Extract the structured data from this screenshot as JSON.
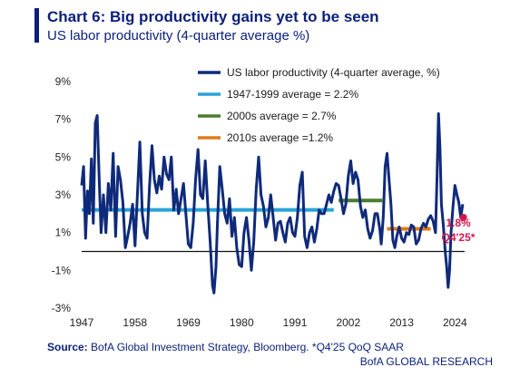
{
  "header": {
    "title": "Chart 6: Big productivity gains yet to be seen",
    "subtitle": "US labor productivity (4-quarter average %)"
  },
  "footer": {
    "source_label": "Source:",
    "source_text": " BofA Global Investment Strategy, Bloomberg. *Q4'25 QoQ SAAR",
    "brand": "BofA GLOBAL RESEARCH"
  },
  "colors": {
    "series": "#0f2a7a",
    "avg_1947_1999": "#29a3d8",
    "avg_2000s": "#4a7d2c",
    "avg_2010s": "#e07b1a",
    "annotation": "#d1184e",
    "zero_line": "#111111"
  },
  "chart_data": {
    "type": "line",
    "x_ticks": [
      "1947",
      "1958",
      "1969",
      "1980",
      "1991",
      "2002",
      "2013",
      "2024"
    ],
    "y_ticks": [
      "9%",
      "7%",
      "5%",
      "3%",
      "1%",
      "-1%",
      "-3%"
    ],
    "xlim": [
      1947,
      2026
    ],
    "ylim": [
      -3,
      9
    ],
    "zero_line": true,
    "grid": false,
    "legend_position": "top-right",
    "series": [
      {
        "name": "US labor productivity (4-quarter average, %)",
        "points": [
          [
            1947.0,
            3.5
          ],
          [
            1947.4,
            4.5
          ],
          [
            1947.8,
            0.7
          ],
          [
            1948.2,
            3.2
          ],
          [
            1948.6,
            2.0
          ],
          [
            1949.0,
            4.9
          ],
          [
            1949.4,
            1.5
          ],
          [
            1949.8,
            6.8
          ],
          [
            1950.2,
            7.2
          ],
          [
            1950.6,
            4.0
          ],
          [
            1951.0,
            1.0
          ],
          [
            1951.5,
            3.0
          ],
          [
            1952.0,
            1.0
          ],
          [
            1952.5,
            3.6
          ],
          [
            1953.0,
            2.2
          ],
          [
            1953.5,
            5.2
          ],
          [
            1954.0,
            0.8
          ],
          [
            1954.5,
            4.5
          ],
          [
            1955.0,
            3.8
          ],
          [
            1955.5,
            2.6
          ],
          [
            1956.0,
            0.2
          ],
          [
            1956.5,
            0.8
          ],
          [
            1957.0,
            1.5
          ],
          [
            1957.5,
            2.5
          ],
          [
            1958.0,
            0.3
          ],
          [
            1958.5,
            3.0
          ],
          [
            1959.0,
            5.8
          ],
          [
            1959.5,
            2.0
          ],
          [
            1960.0,
            1.0
          ],
          [
            1960.5,
            0.7
          ],
          [
            1961.0,
            3.5
          ],
          [
            1961.5,
            5.6
          ],
          [
            1962.0,
            3.8
          ],
          [
            1962.5,
            3.1
          ],
          [
            1963.0,
            4.0
          ],
          [
            1963.5,
            3.3
          ],
          [
            1964.0,
            5.0
          ],
          [
            1964.5,
            4.1
          ],
          [
            1965.0,
            3.8
          ],
          [
            1965.5,
            5.0
          ],
          [
            1966.0,
            2.2
          ],
          [
            1966.5,
            3.3
          ],
          [
            1967.0,
            2.0
          ],
          [
            1967.5,
            2.8
          ],
          [
            1968.0,
            3.6
          ],
          [
            1968.5,
            2.0
          ],
          [
            1969.0,
            0.4
          ],
          [
            1969.5,
            0.2
          ],
          [
            1970.0,
            1.5
          ],
          [
            1970.5,
            3.8
          ],
          [
            1971.0,
            5.4
          ],
          [
            1971.5,
            3.0
          ],
          [
            1972.0,
            2.8
          ],
          [
            1972.5,
            4.8
          ],
          [
            1973.0,
            2.5
          ],
          [
            1973.5,
            0.5
          ],
          [
            1974.0,
            -1.8
          ],
          [
            1974.3,
            -2.2
          ],
          [
            1974.7,
            -0.8
          ],
          [
            1975.0,
            1.5
          ],
          [
            1975.5,
            4.5
          ],
          [
            1976.0,
            3.3
          ],
          [
            1976.5,
            2.0
          ],
          [
            1977.0,
            1.5
          ],
          [
            1977.5,
            2.8
          ],
          [
            1978.0,
            0.8
          ],
          [
            1978.5,
            1.8
          ],
          [
            1979.0,
            0.2
          ],
          [
            1979.5,
            -0.7
          ],
          [
            1980.0,
            -0.8
          ],
          [
            1980.5,
            1.0
          ],
          [
            1981.0,
            1.8
          ],
          [
            1981.5,
            0.6
          ],
          [
            1982.0,
            -1.0
          ],
          [
            1982.5,
            0.5
          ],
          [
            1983.0,
            3.3
          ],
          [
            1983.5,
            5.0
          ],
          [
            1984.0,
            3.0
          ],
          [
            1984.5,
            2.4
          ],
          [
            1985.0,
            1.3
          ],
          [
            1985.5,
            1.8
          ],
          [
            1986.0,
            3.0
          ],
          [
            1986.5,
            1.8
          ],
          [
            1987.0,
            0.6
          ],
          [
            1987.5,
            1.5
          ],
          [
            1988.0,
            1.6
          ],
          [
            1988.5,
            1.0
          ],
          [
            1989.0,
            0.5
          ],
          [
            1989.5,
            1.5
          ],
          [
            1990.0,
            1.8
          ],
          [
            1990.5,
            1.0
          ],
          [
            1991.0,
            0.8
          ],
          [
            1991.5,
            1.8
          ],
          [
            1992.0,
            3.5
          ],
          [
            1992.5,
            4.2
          ],
          [
            1993.0,
            0.8
          ],
          [
            1993.5,
            0.2
          ],
          [
            1994.0,
            1.0
          ],
          [
            1994.5,
            1.3
          ],
          [
            1995.0,
            0.5
          ],
          [
            1995.5,
            1.2
          ],
          [
            1996.0,
            2.2
          ],
          [
            1996.5,
            2.0
          ],
          [
            1997.0,
            2.0
          ],
          [
            1997.5,
            2.5
          ],
          [
            1998.0,
            3.0
          ],
          [
            1998.5,
            2.6
          ],
          [
            1999.0,
            3.2
          ],
          [
            1999.5,
            3.6
          ],
          [
            2000.0,
            3.5
          ],
          [
            2000.5,
            2.8
          ],
          [
            2001.0,
            2.0
          ],
          [
            2001.5,
            2.5
          ],
          [
            2002.0,
            4.0
          ],
          [
            2002.5,
            4.8
          ],
          [
            2003.0,
            3.6
          ],
          [
            2003.5,
            4.2
          ],
          [
            2004.0,
            3.8
          ],
          [
            2004.5,
            2.4
          ],
          [
            2005.0,
            1.8
          ],
          [
            2005.5,
            2.2
          ],
          [
            2006.0,
            1.2
          ],
          [
            2006.5,
            0.7
          ],
          [
            2007.0,
            1.1
          ],
          [
            2007.5,
            2.0
          ],
          [
            2008.0,
            2.0
          ],
          [
            2008.5,
            1.2
          ],
          [
            2008.8,
            0.4
          ],
          [
            2009.2,
            1.8
          ],
          [
            2009.6,
            4.5
          ],
          [
            2010.0,
            5.2
          ],
          [
            2010.4,
            3.8
          ],
          [
            2010.8,
            2.5
          ],
          [
            2011.2,
            0.6
          ],
          [
            2011.6,
            0.2
          ],
          [
            2012.0,
            0.8
          ],
          [
            2012.5,
            1.3
          ],
          [
            2013.0,
            0.7
          ],
          [
            2013.5,
            0.5
          ],
          [
            2014.0,
            1.0
          ],
          [
            2014.5,
            0.9
          ],
          [
            2015.0,
            1.4
          ],
          [
            2015.5,
            1.3
          ],
          [
            2016.0,
            0.4
          ],
          [
            2016.5,
            0.6
          ],
          [
            2017.0,
            1.2
          ],
          [
            2017.5,
            1.5
          ],
          [
            2018.0,
            1.3
          ],
          [
            2018.5,
            1.7
          ],
          [
            2019.0,
            1.9
          ],
          [
            2019.5,
            1.6
          ],
          [
            2020.0,
            1.0
          ],
          [
            2020.3,
            4.0
          ],
          [
            2020.6,
            7.3
          ],
          [
            2020.9,
            5.5
          ],
          [
            2021.2,
            2.5
          ],
          [
            2021.6,
            1.4
          ],
          [
            2022.0,
            0.0
          ],
          [
            2022.3,
            -0.8
          ],
          [
            2022.6,
            -1.9
          ],
          [
            2022.9,
            -1.0
          ],
          [
            2023.2,
            1.0
          ],
          [
            2023.6,
            2.4
          ],
          [
            2024.0,
            3.5
          ],
          [
            2024.4,
            3.0
          ],
          [
            2024.8,
            2.6
          ],
          [
            2025.2,
            1.8
          ],
          [
            2025.6,
            2.5
          ]
        ]
      }
    ],
    "averages": [
      {
        "label": "1947-1999 average = 2.2%",
        "value": 2.2,
        "x_range": [
          1947,
          1999
        ]
      },
      {
        "label": "2000s average = 2.7%",
        "value": 2.7,
        "x_range": [
          2000,
          2009
        ]
      },
      {
        "label": "2010s average =1.2%",
        "value": 1.2,
        "x_range": [
          2010,
          2019
        ]
      }
    ],
    "annotation": {
      "value_label": "1.8%",
      "period_label": "Q4'25*",
      "x": 2025.75,
      "y": 1.8
    }
  }
}
